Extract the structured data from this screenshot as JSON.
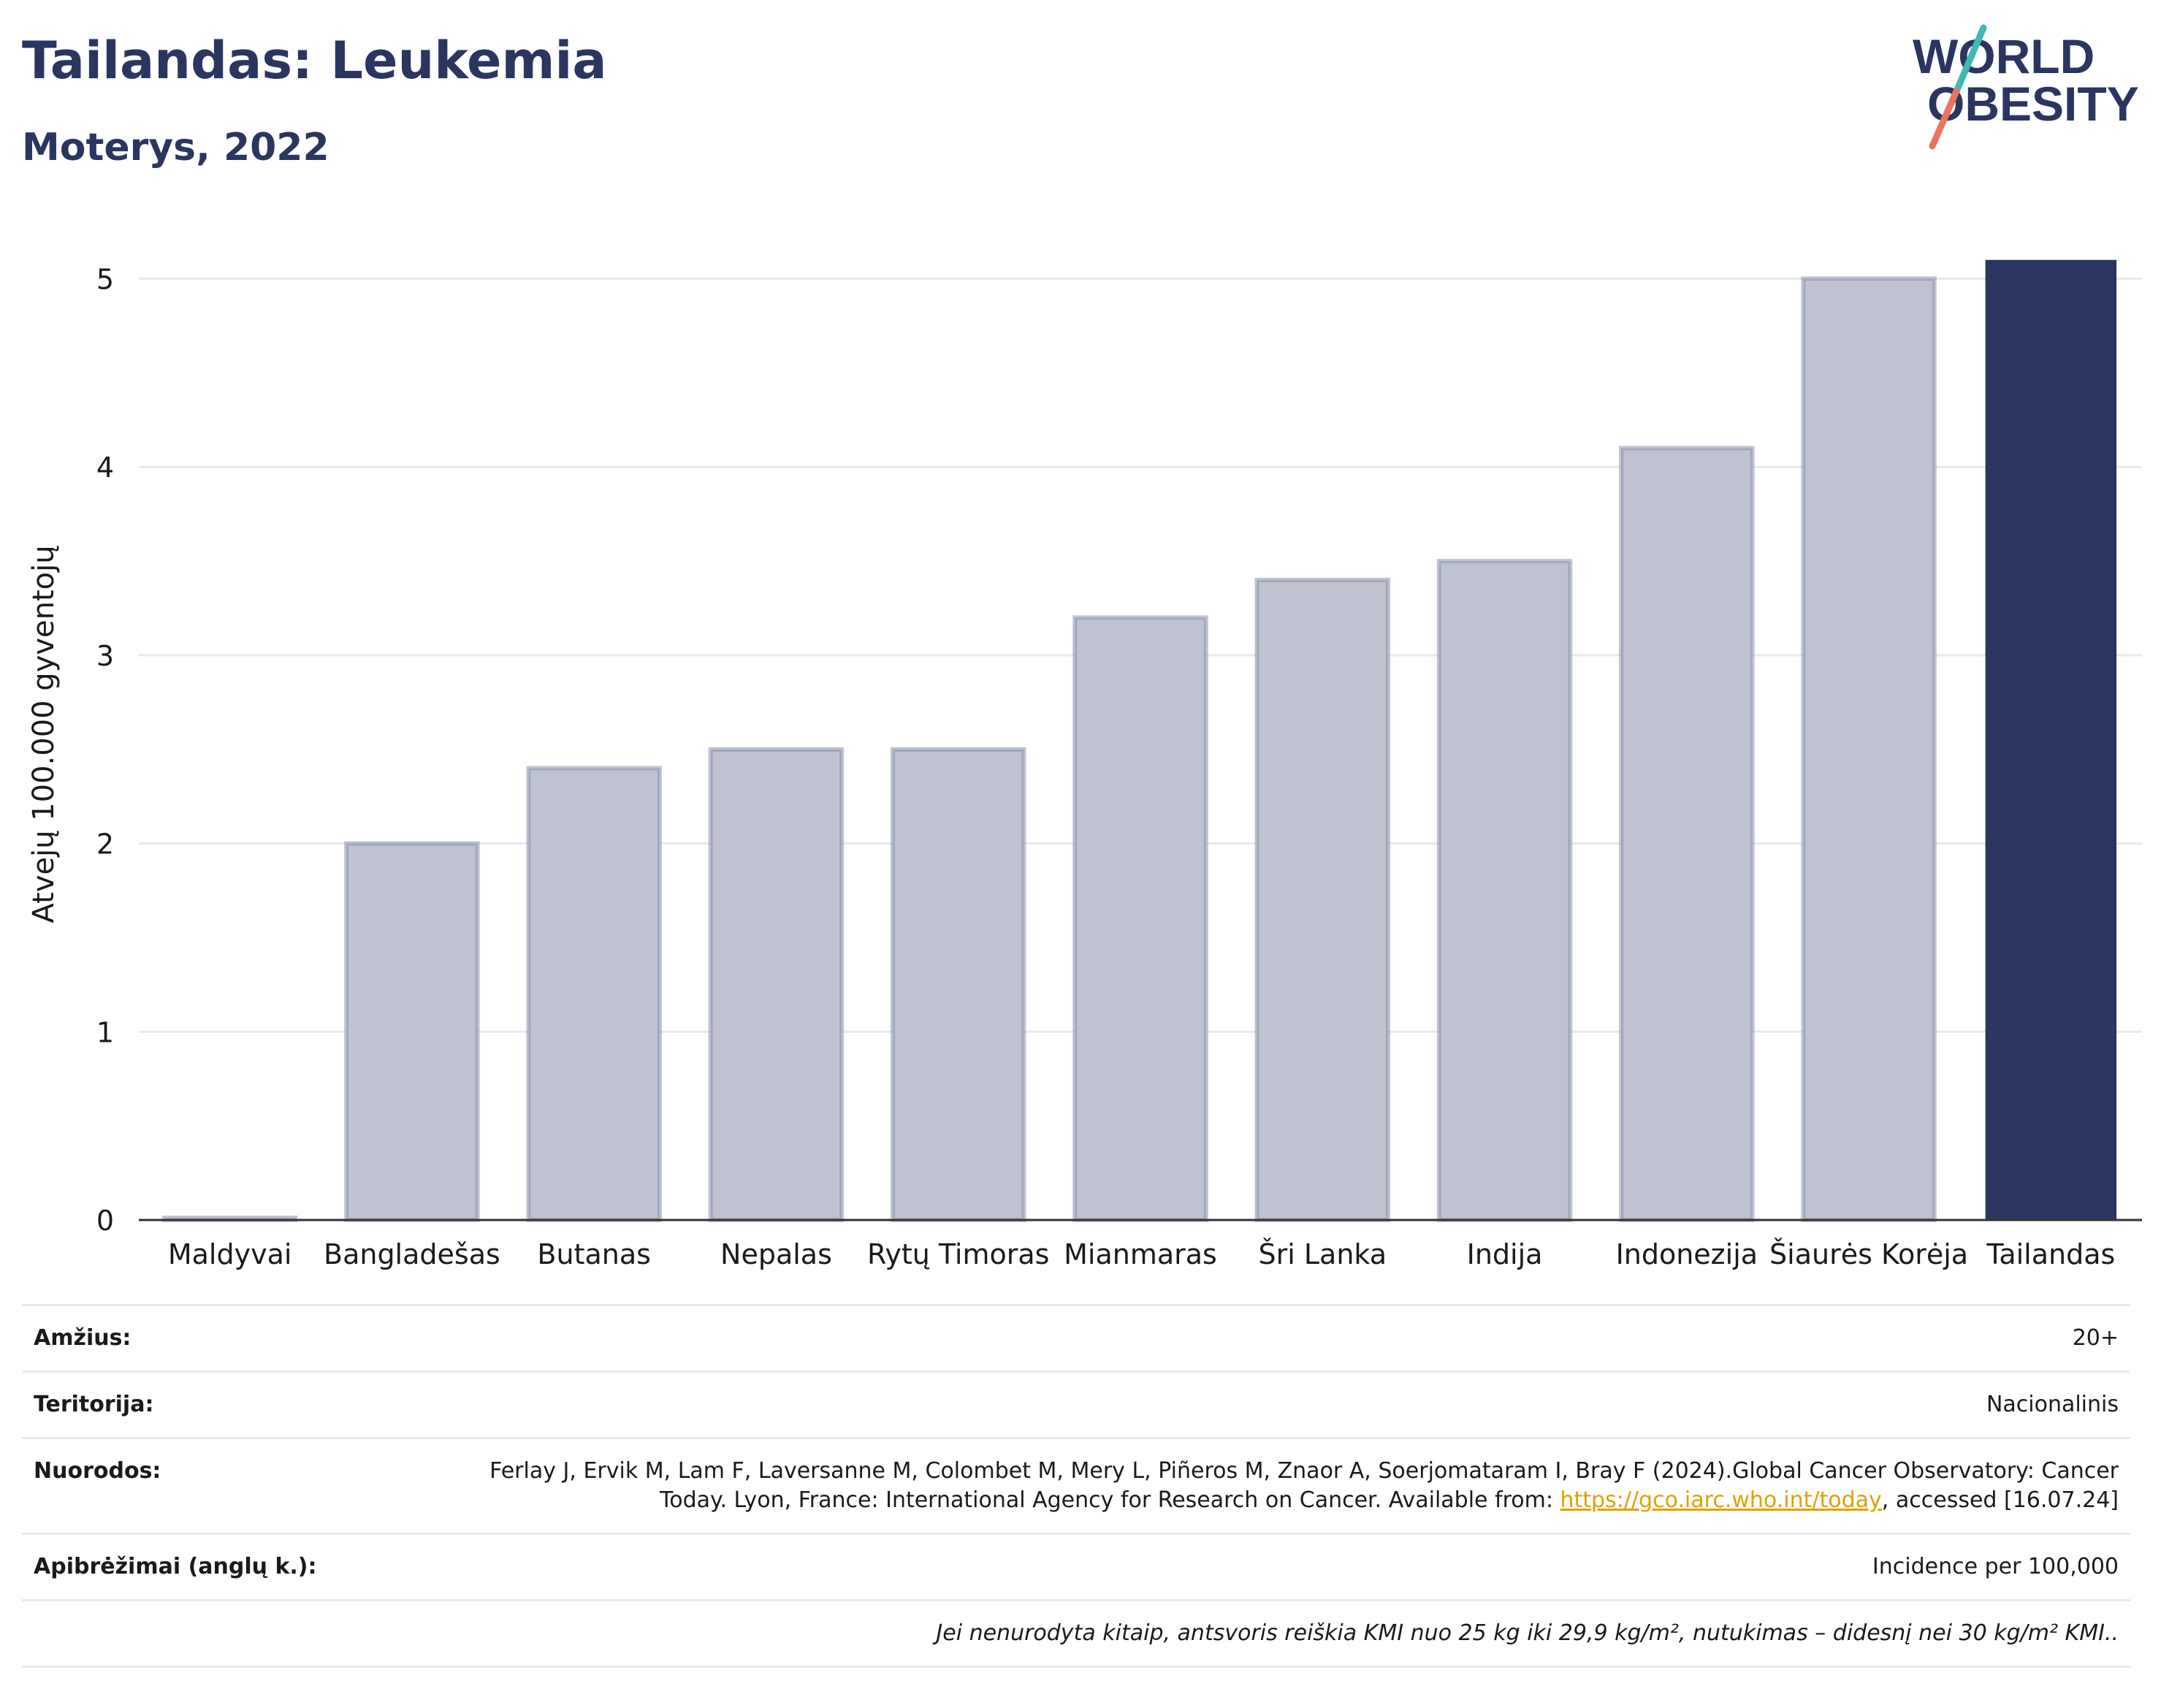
{
  "header": {
    "title": "Tailandas: Leukemia",
    "subtitle": "Moterys, 2022"
  },
  "logo": {
    "line1": "WORLD",
    "line2": "OBESITY"
  },
  "colors": {
    "highlight": "#2a3560",
    "bars": "#bfc3d1",
    "bar_outline": "#8b92ad",
    "grid": "#e6e9ef",
    "logo_slash_teal": "#3fb7b3",
    "logo_slash_coral": "#e8735f"
  },
  "chart_data": {
    "type": "bar",
    "categories": [
      "Maldyvai",
      "Bangladešas",
      "Butanas",
      "Nepalas",
      "Rytų Timoras",
      "Mianmaras",
      "Šri Lanka",
      "Indija",
      "Indonezija",
      "Šiaurės Korėja",
      "Tailandas"
    ],
    "values": [
      0.01,
      2.0,
      2.4,
      2.5,
      2.5,
      3.2,
      3.4,
      3.5,
      4.1,
      5.0,
      5.1
    ],
    "highlight": "Tailandas",
    "ylabel": "Atvejų 100.000 gyventojų",
    "xlabel": "",
    "ylim": [
      0,
      5.2
    ],
    "yticks": [
      0,
      1,
      2,
      3,
      4,
      5
    ],
    "grid": true
  },
  "info": {
    "age_label": "Amžius:",
    "age_value": "20+",
    "territory_label": "Teritorija:",
    "territory_value": "Nacionalinis",
    "refs_label": "Nuorodos:",
    "refs_text1": "Ferlay J, Ervik M, Lam F, Laversanne M, Colombet M, Mery L, Piñeros M, Znaor A, Soerjomataram I, Bray F (2024).Global Cancer Observatory: Cancer Today. Lyon, France: International Agency for Research on Cancer. Available from: ",
    "refs_link": "https://gco.iarc.who.int/today",
    "refs_text2": ", accessed [16.07.24]",
    "defs_label": "Apibrėžimai (anglų k.):",
    "defs_value": "Incidence per 100,000",
    "note": "Jei nenurodyta kitaip, antsvoris reiškia KMI nuo 25 kg iki 29,9 kg/m², nutukimas – didesnį nei 30 kg/m² KMI.."
  }
}
